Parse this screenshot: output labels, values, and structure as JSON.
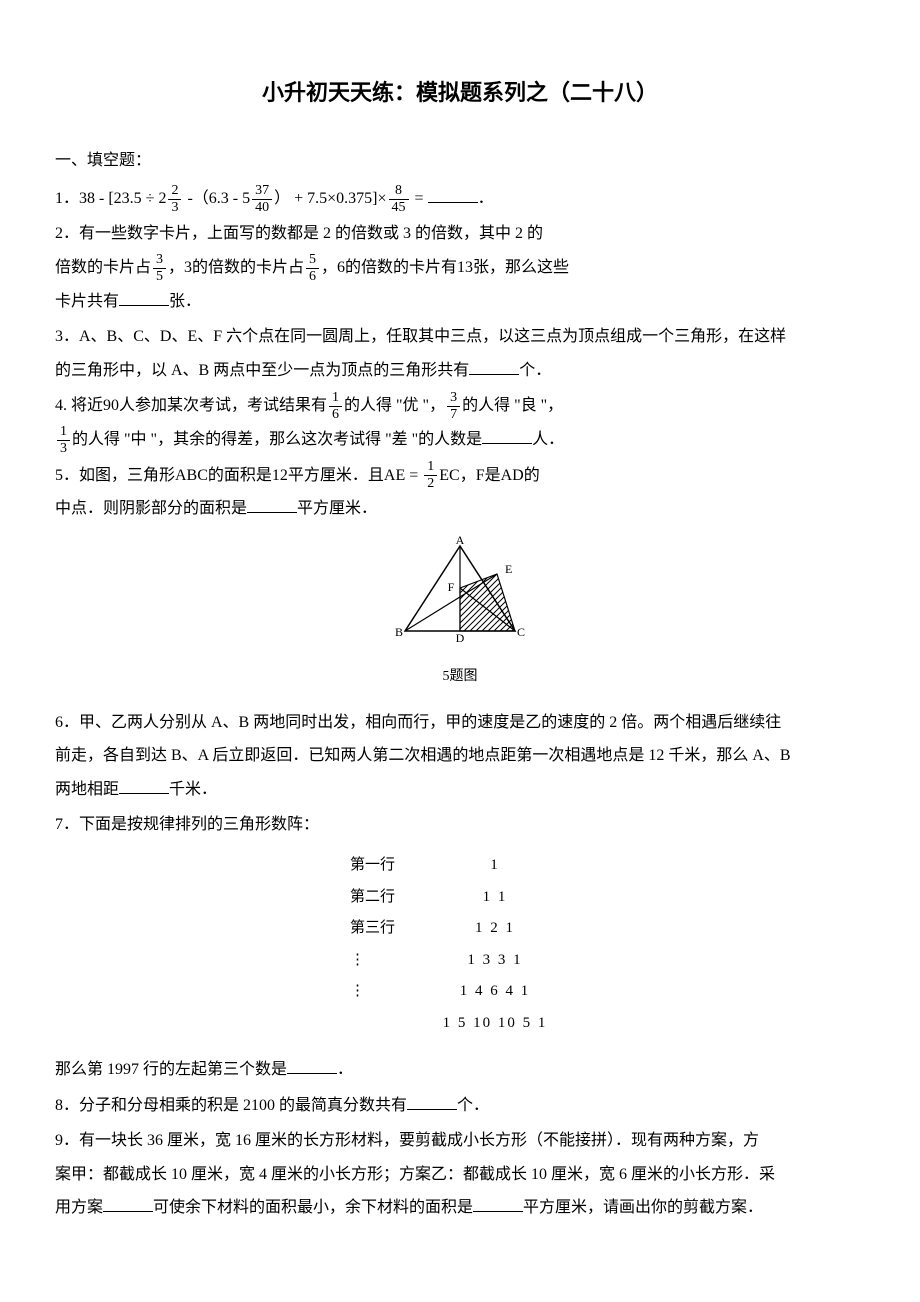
{
  "title": "小升初天天练：模拟题系列之（二十八）",
  "section1_header": "一、填空题：",
  "q1_prefix": "1．38 - [23.5 ÷ 2",
  "q1_f1_num": "2",
  "q1_f1_den": "3",
  "q1_mid1": " -（6.3 - 5",
  "q1_f2_num": "37",
  "q1_f2_den": "40",
  "q1_mid2": "） + 7.5×0.375]×",
  "q1_f3_num": "8",
  "q1_f3_den": "45",
  "q1_suffix": " = ",
  "q1_end": "．",
  "q2_line1": "2．有一些数字卡片，上面写的数都是 2 的倍数或 3 的倍数，其中 2 的",
  "q2_line2a": "倍数的卡片占",
  "q2_f1_num": "3",
  "q2_f1_den": "5",
  "q2_line2b": "，3的倍数的卡片占",
  "q2_f2_num": "5",
  "q2_f2_den": "6",
  "q2_line2c": "，6的倍数的卡片有13张，那么这些",
  "q2_line3a": "卡片共有",
  "q2_line3b": "张．",
  "q3_line1": "3．A、B、C、D、E、F 六个点在同一圆周上，任取其中三点，以这三点为顶点组成一个三角形，在这样",
  "q3_line2a": "的三角形中，以 A、B 两点中至少一点为顶点的三角形共有",
  "q3_line2b": "个．",
  "q4_line1a": "4. 将近90人参加某次考试，考试结果有",
  "q4_f1_num": "1",
  "q4_f1_den": "6",
  "q4_line1b": "的人得 \"优 \"，",
  "q4_f2_num": "3",
  "q4_f2_den": "7",
  "q4_line1c": "的人得 \"良 \"，",
  "q4_f3_num": "1",
  "q4_f3_den": "3",
  "q4_line2a": "的人得 \"中 \"，其余的得差，那么这次考试得 \"差 \"的人数是",
  "q4_line2b": "人．",
  "q5_line1a": "5．如图，三角形ABC的面积是12平方厘米．且AE = ",
  "q5_f1_num": "1",
  "q5_f1_den": "2",
  "q5_line1b": "EC，F是AD的",
  "q5_line2a": "中点．则阴影部分的面积是",
  "q5_line2b": "平方厘米．",
  "fig5_caption": "5题图",
  "fig5": {
    "A": "A",
    "B": "B",
    "C": "C",
    "D": "D",
    "E": "E",
    "F": "F",
    "stroke": "#000000",
    "hatch_stroke": "#000000"
  },
  "q6_line1": "6．甲、乙两人分别从 A、B 两地同时出发，相向而行，甲的速度是乙的速度的 2 倍。两个相遇后继续往",
  "q6_line2": "前走，各自到达 B、A 后立即返回．已知两人第二次相遇的地点距第一次相遇地点是 12 千米，那么 A、B",
  "q6_line3a": "两地相距",
  "q6_line3b": "千米．",
  "q7_line1": "7．下面是按规律排列的三角形数阵：",
  "pascal": {
    "rows": [
      {
        "label": "第一行",
        "nums": "1"
      },
      {
        "label": "第二行",
        "nums": "1  1"
      },
      {
        "label": "第三行",
        "nums": "1 2 1"
      },
      {
        "label": "⋮",
        "nums": "1 3 3 1"
      },
      {
        "label": "⋮",
        "nums": "1 4 6 4 1"
      },
      {
        "label": "",
        "nums": "1 5 10 10 5 1"
      }
    ]
  },
  "q7_2a": "那么第 1997 行的左起第三个数是",
  "q7_2b": "．",
  "q8a": "8．分子和分母相乘的积是 2100 的最简真分数共有",
  "q8b": "个．",
  "q9_line1": "9．有一块长 36 厘米，宽 16 厘米的长方形材料，要剪截成小长方形（不能接拼）．现有两种方案，方",
  "q9_line2": "案甲：都截成长 10 厘米，宽 4 厘米的小长方形；方案乙：都截成长 10 厘米，宽 6 厘米的小长方形．采",
  "q9_line3a": "用方案",
  "q9_line3b": "可使余下材料的面积最小，余下材料的面积是",
  "q9_line3c": "平方厘米，请画出你的剪截方案．"
}
